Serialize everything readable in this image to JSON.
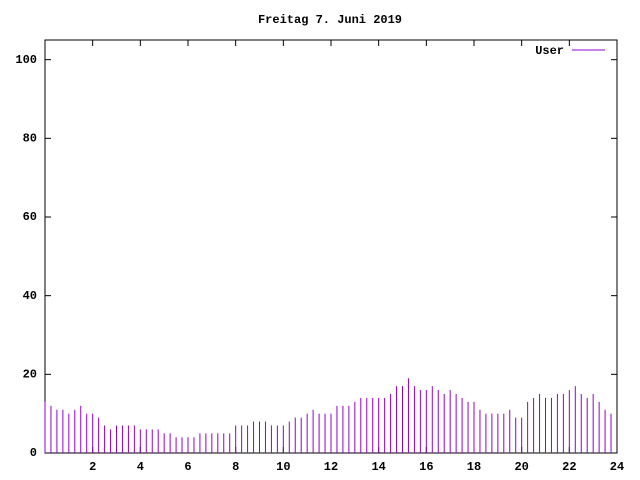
{
  "chart_data": {
    "type": "impulses",
    "title": "Freitag 7. Juni 2019",
    "x": [
      0,
      0.25,
      0.5,
      0.75,
      1,
      1.25,
      1.5,
      1.75,
      2,
      2.25,
      2.5,
      2.75,
      3,
      3.25,
      3.5,
      3.75,
      4,
      4.25,
      4.5,
      4.75,
      5,
      5.25,
      5.5,
      5.75,
      6,
      6.25,
      6.5,
      6.75,
      7,
      7.25,
      7.5,
      7.75,
      8,
      8.25,
      8.5,
      8.75,
      9,
      9.25,
      9.5,
      9.75,
      10,
      10.25,
      10.5,
      10.75,
      11,
      11.25,
      11.5,
      11.75,
      12,
      12.25,
      12.5,
      12.75,
      13,
      13.25,
      13.5,
      13.75,
      14,
      14.25,
      14.5,
      14.75,
      15,
      15.25,
      15.5,
      15.75,
      16,
      16.25,
      16.5,
      16.75,
      17,
      17.25,
      17.5,
      17.75,
      18,
      18.25,
      18.5,
      18.75,
      19,
      19.25,
      19.5,
      19.75,
      20,
      20.25,
      20.5,
      20.75,
      21,
      21.25,
      21.5,
      21.75,
      22,
      22.25,
      22.5,
      22.75,
      23,
      23.25,
      23.5,
      23.75
    ],
    "series": [
      {
        "name": "User",
        "color": "#9400d3",
        "values": [
          13,
          12,
          11,
          11,
          10,
          11,
          12,
          10,
          10,
          9,
          7,
          6,
          7,
          7,
          7,
          7,
          6,
          6,
          6,
          6,
          5,
          5,
          4,
          4,
          4,
          4,
          5,
          5,
          5,
          5,
          5,
          5,
          7,
          7,
          7,
          8,
          8,
          8,
          7,
          7,
          7,
          8,
          9,
          9,
          10,
          11,
          10,
          10,
          10,
          12,
          12,
          12,
          13,
          14,
          14,
          14,
          14,
          14,
          15,
          17,
          17,
          19,
          17,
          16,
          16,
          17,
          16,
          15,
          16,
          15,
          14,
          13,
          13,
          11,
          10,
          10,
          10,
          10,
          11,
          9,
          9,
          13,
          14,
          15,
          14,
          14,
          15,
          15,
          16,
          17,
          15,
          14,
          15,
          13,
          11,
          10
        ]
      }
    ],
    "xlim": [
      0,
      24
    ],
    "xticks": [
      2,
      4,
      6,
      8,
      10,
      12,
      14,
      16,
      18,
      20,
      22,
      24
    ],
    "ylim": [
      0,
      105
    ],
    "yticks": [
      0,
      20,
      40,
      60,
      80,
      100
    ]
  }
}
